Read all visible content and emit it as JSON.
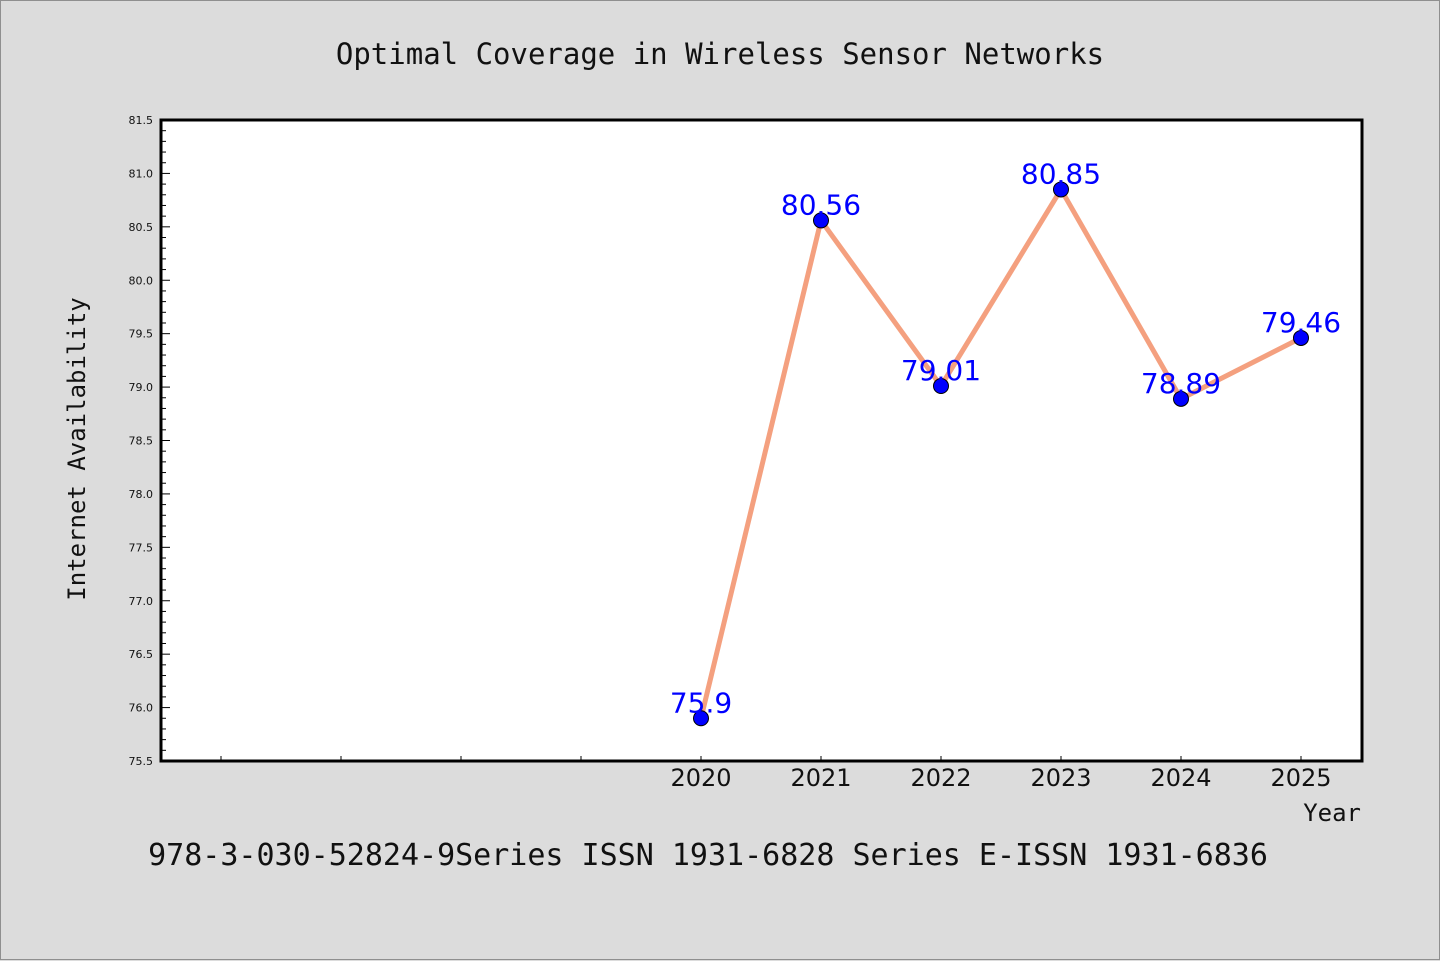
{
  "chart_data": {
    "type": "line",
    "title": "Optimal Coverage in Wireless Sensor Networks",
    "xlabel": "Year",
    "ylabel": "Internet Availability",
    "x": [
      "2020",
      "2021",
      "2022",
      "2023",
      "2024",
      "2025"
    ],
    "x_slots_before_data": 4,
    "series": [
      {
        "values": [
          75.9,
          80.56,
          79.01,
          80.85,
          78.89,
          79.46
        ]
      }
    ],
    "data_labels": [
      "75.9",
      "80.56",
      "79.01",
      "80.85",
      "78.89",
      "79.46"
    ],
    "ylim": [
      75.5,
      81.5
    ],
    "yticks": [
      75.5,
      76.0,
      76.5,
      77.0,
      77.5,
      78.0,
      78.5,
      79.0,
      79.5,
      80.0,
      80.5,
      81.0,
      81.5
    ],
    "grid": false,
    "legend": "none",
    "colors": {
      "line": "#f4a07f",
      "marker": "#0000ff",
      "label": "#0000ff",
      "background": "#dcdcdc",
      "plot_area": "#ffffff"
    }
  },
  "footer": "978-3-030-52824-9Series ISSN 1931-6828 Series E-ISSN 1931-6836"
}
